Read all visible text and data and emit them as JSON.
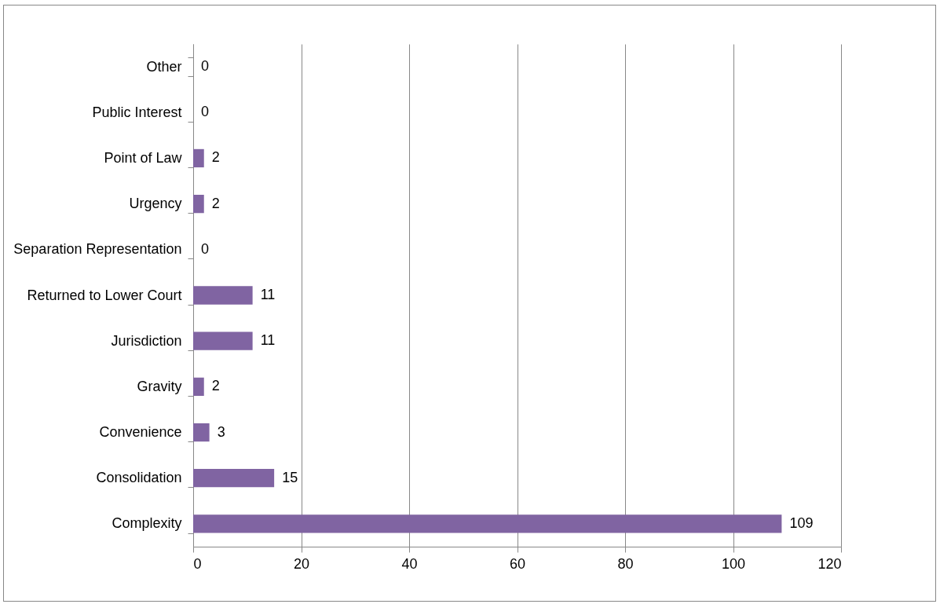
{
  "chart_data": {
    "type": "bar",
    "orientation": "horizontal",
    "categories": [
      "Other",
      "Public Interest",
      "Point of Law",
      "Urgency",
      "Separation Representation",
      "Returned to Lower Court",
      "Jurisdiction",
      "Gravity",
      "Convenience",
      "Consolidation",
      "Complexity"
    ],
    "values": [
      0,
      0,
      2,
      2,
      0,
      11,
      11,
      2,
      3,
      15,
      109
    ],
    "color": "#8064a2",
    "xlim": [
      0,
      120
    ],
    "xticks": [
      0,
      20,
      40,
      60,
      80,
      100,
      120
    ],
    "grid": "x",
    "data_labels": true
  }
}
